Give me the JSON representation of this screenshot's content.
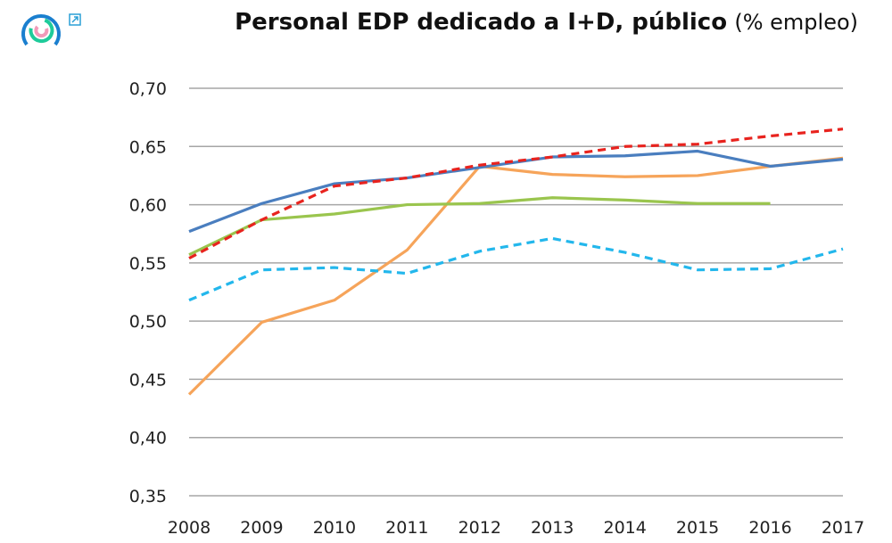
{
  "header": {
    "title_bold": "Personal EDP dedicado a I+D, público",
    "title_unit": "(% empleo)",
    "logo_icon": "circular-rings-logo",
    "external_link_icon": "external-link-icon"
  },
  "chart_data": {
    "type": "line",
    "title": "Personal EDP dedicado a I+D, público (% empleo)",
    "x": [
      "2008",
      "2009",
      "2010",
      "2011",
      "2012",
      "2013",
      "2014",
      "2015",
      "2016",
      "2017"
    ],
    "y_ticks": [
      "0,35",
      "0,40",
      "0,45",
      "0,50",
      "0,55",
      "0,60",
      "0,65",
      "0,70"
    ],
    "ylim": [
      0.35,
      0.7
    ],
    "grid": true,
    "legend": "none",
    "series": [
      {
        "color": "#f6a45a",
        "dash": false,
        "values": [
          0.437,
          0.499,
          0.518,
          0.561,
          0.633,
          0.626,
          0.624,
          0.625,
          0.633,
          0.64
        ]
      },
      {
        "color": "#9ac54e",
        "dash": false,
        "values": [
          0.557,
          0.587,
          0.592,
          0.6,
          0.601,
          0.606,
          0.604,
          0.601,
          0.601,
          null
        ]
      },
      {
        "color": "#23b7ec",
        "dash": true,
        "values": [
          0.518,
          0.544,
          0.546,
          0.541,
          0.56,
          0.571,
          0.559,
          0.544,
          0.545,
          0.562
        ]
      },
      {
        "color": "#4a7ebf",
        "dash": false,
        "values": [
          0.577,
          0.601,
          0.618,
          0.623,
          0.632,
          0.641,
          0.642,
          0.646,
          0.633,
          0.639
        ]
      },
      {
        "color": "#e8231e",
        "dash": true,
        "values": [
          0.554,
          0.587,
          0.616,
          0.623,
          0.634,
          0.641,
          0.65,
          0.652,
          0.659,
          0.665
        ]
      }
    ]
  }
}
